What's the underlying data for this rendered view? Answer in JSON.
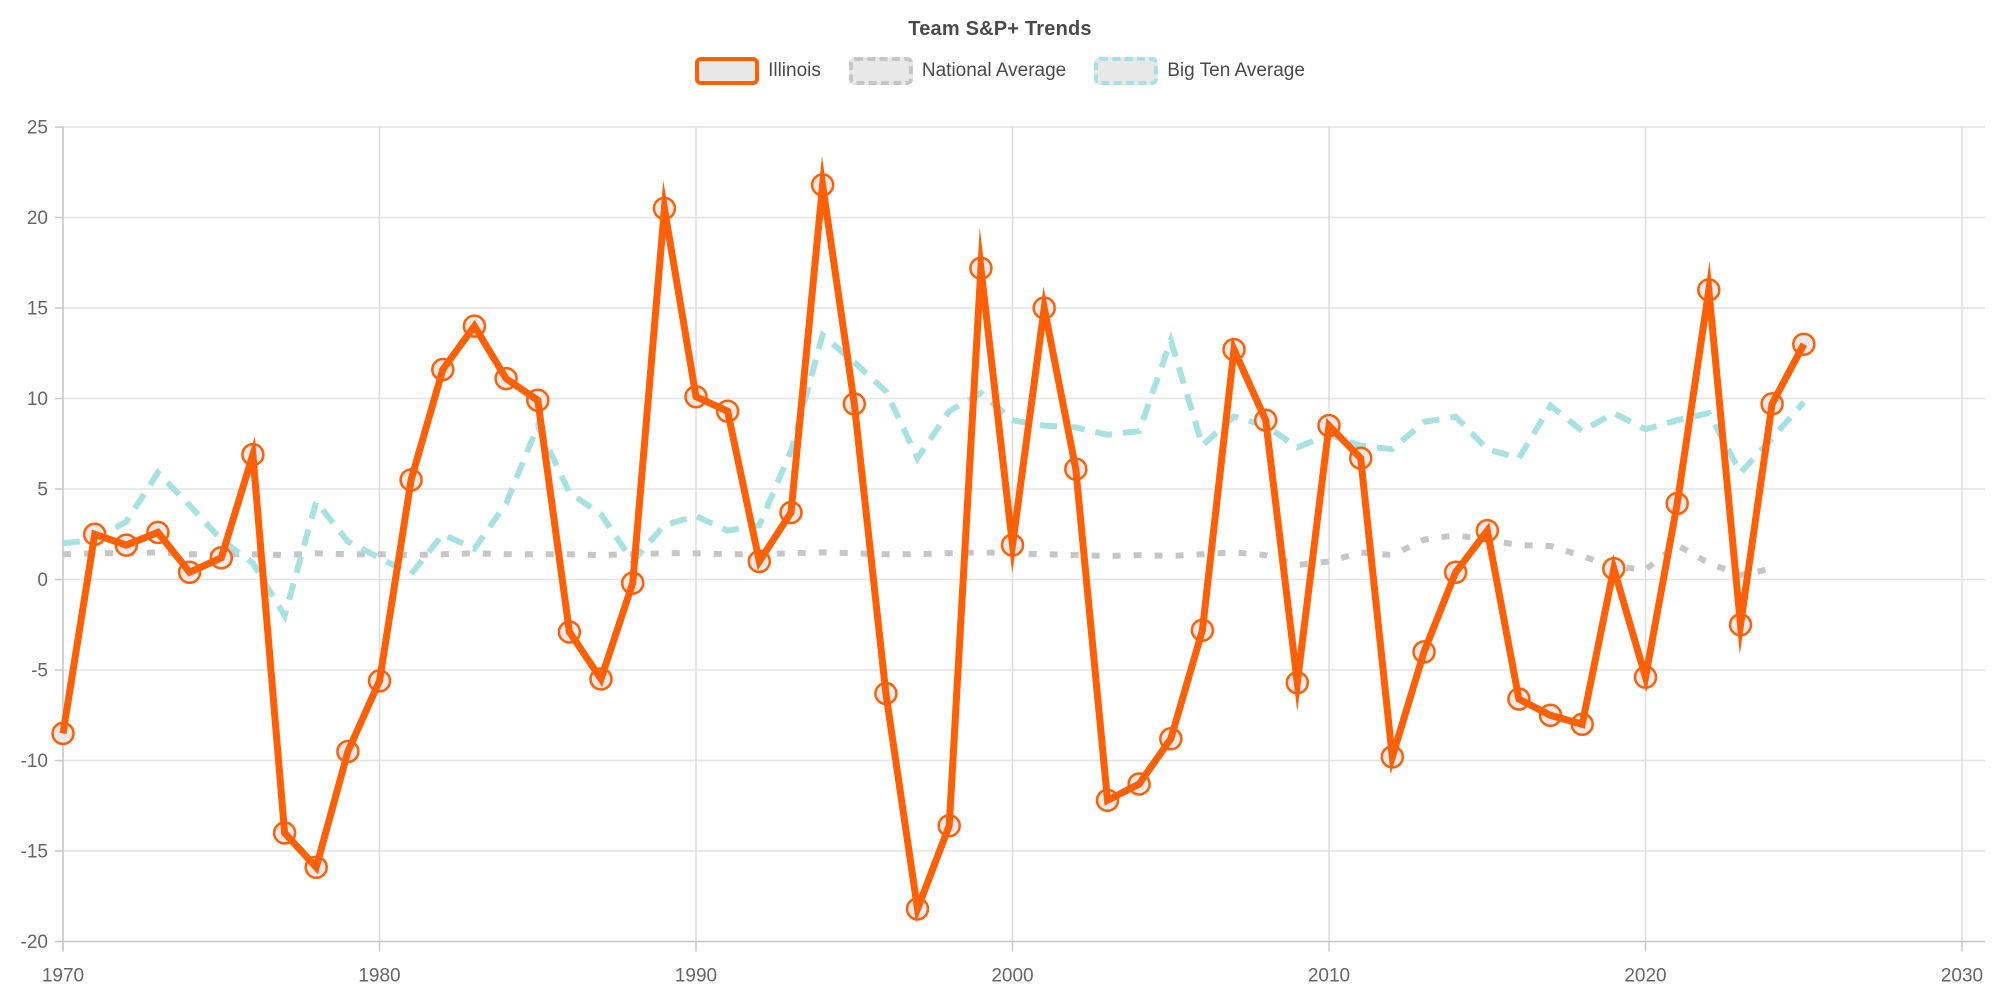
{
  "chart_data": {
    "type": "line",
    "title": "Team S&P+ Trends",
    "xlabel": "",
    "ylabel": "",
    "xlim": [
      1970,
      2030
    ],
    "ylim": [
      -20,
      25
    ],
    "x_ticks": [
      1970,
      1980,
      1990,
      2000,
      2010,
      2020,
      2030
    ],
    "y_ticks": [
      25,
      20,
      15,
      10,
      5,
      0,
      -5,
      -10,
      -15,
      -20
    ],
    "grid": true,
    "legend_position": "top",
    "x": [
      1970,
      1971,
      1972,
      1973,
      1974,
      1975,
      1976,
      1977,
      1978,
      1979,
      1980,
      1981,
      1982,
      1983,
      1984,
      1985,
      1986,
      1987,
      1988,
      1989,
      1990,
      1991,
      1992,
      1993,
      1994,
      1995,
      1996,
      1997,
      1998,
      1999,
      2000,
      2001,
      2002,
      2003,
      2004,
      2005,
      2006,
      2007,
      2008,
      2009,
      2010,
      2011,
      2012,
      2013,
      2014,
      2015,
      2016,
      2017,
      2018,
      2019,
      2020,
      2021,
      2022,
      2023,
      2024,
      2025
    ],
    "series": [
      {
        "name": "Illinois",
        "color": "#FF5F05",
        "line_style": "solid",
        "line_width": 7,
        "markers": true,
        "marker_fill": "#E9E9E9",
        "values": [
          -8.5,
          2.5,
          1.9,
          2.6,
          0.4,
          1.2,
          6.9,
          -14.0,
          -15.9,
          -9.5,
          -5.6,
          5.5,
          11.6,
          14.0,
          11.1,
          9.9,
          -2.9,
          -5.5,
          -0.2,
          20.5,
          10.1,
          9.3,
          1.0,
          3.7,
          21.8,
          9.7,
          -6.3,
          -18.2,
          -13.6,
          17.2,
          1.9,
          15.0,
          6.1,
          -12.2,
          -11.3,
          -8.8,
          -2.8,
          12.7,
          8.8,
          -5.7,
          8.5,
          6.7,
          -9.8,
          -4.0,
          0.4,
          2.7,
          -6.6,
          -7.5,
          -8.0,
          0.6,
          -5.4,
          4.2,
          16.0,
          -2.5,
          9.7,
          13.0
        ]
      },
      {
        "name": "National Average",
        "color": "#C6C6C6",
        "line_style": "dotted",
        "line_width": 6,
        "markers": false,
        "values": [
          1.4,
          1.45,
          1.45,
          1.5,
          1.4,
          1.4,
          1.4,
          1.35,
          1.45,
          1.4,
          1.4,
          1.35,
          1.4,
          1.45,
          1.4,
          1.4,
          1.4,
          1.35,
          1.4,
          1.45,
          1.45,
          1.4,
          1.4,
          1.45,
          1.5,
          1.45,
          1.4,
          1.4,
          1.45,
          1.5,
          1.45,
          1.4,
          1.35,
          1.3,
          1.35,
          1.3,
          1.4,
          1.5,
          1.35,
          0.8,
          1.0,
          1.5,
          1.35,
          2.2,
          2.45,
          2.2,
          1.9,
          1.85,
          1.3,
          0.7,
          0.55,
          1.9,
          0.9,
          0.25,
          0.6,
          null
        ]
      },
      {
        "name": "Big Ten Average",
        "color": "#A8E1E2",
        "line_style": "dashed",
        "line_width": 6,
        "markers": false,
        "values": [
          2.0,
          2.2,
          3.2,
          5.9,
          4.1,
          2.2,
          0.9,
          -2.0,
          4.3,
          2.1,
          1.2,
          0.3,
          2.5,
          1.7,
          4.2,
          8.5,
          4.8,
          3.6,
          1.0,
          3.0,
          3.5,
          2.7,
          3.0,
          7.1,
          13.5,
          12.0,
          10.4,
          6.7,
          9.3,
          10.3,
          8.8,
          8.5,
          8.4,
          8.0,
          8.2,
          13.2,
          7.4,
          9.0,
          8.5,
          7.3,
          8.0,
          7.4,
          7.2,
          8.7,
          9.0,
          7.2,
          6.7,
          9.6,
          8.2,
          9.2,
          8.3,
          8.8,
          9.2,
          5.9,
          7.8,
          9.8
        ]
      }
    ],
    "style": {
      "grid_color": "#E4E4E4",
      "vgrid_color": "#DDDDDD",
      "axis_color": "#C8C8C8",
      "tick_label_color": "#666666",
      "title_color": "#4A4A4A",
      "background": "#FFFFFF"
    }
  }
}
